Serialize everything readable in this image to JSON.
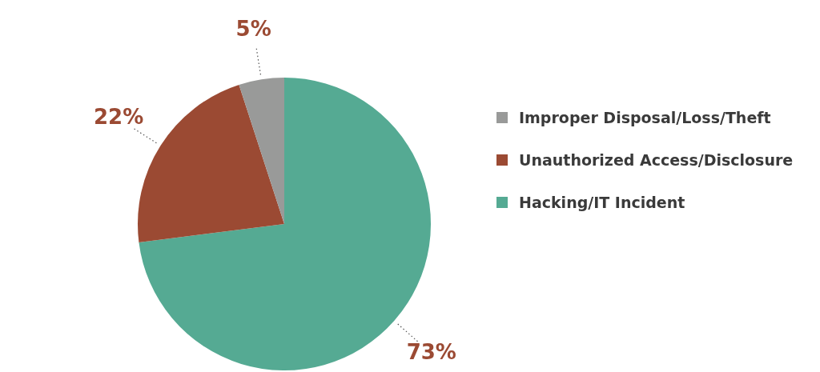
{
  "chart_data": {
    "type": "pie",
    "categories": [
      "Improper Disposal/Loss/Theft",
      "Unauthorized Access/Disclosure",
      "Hacking/IT Incident"
    ],
    "values": [
      5,
      22,
      73
    ],
    "colors": [
      "#999a99",
      "#9b4a33",
      "#55aa93"
    ],
    "legend": "right",
    "value_labels": [
      "5%",
      "22%",
      "73%"
    ]
  }
}
